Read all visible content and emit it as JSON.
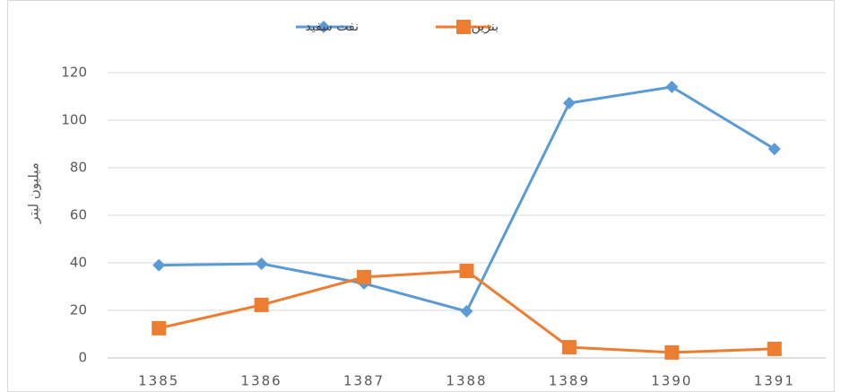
{
  "chart_data": {
    "type": "line",
    "y_label": "میلیون لیتر",
    "categories": [
      "1385",
      "1386",
      "1387",
      "1388",
      "1389",
      "1390",
      "1391"
    ],
    "series": [
      {
        "name": "نفت سفید",
        "color": "#5b9bd5",
        "marker": "diamond",
        "values": [
          39,
          39.6,
          31.3,
          19.6,
          107.2,
          114,
          87.9
        ]
      },
      {
        "name": "بنزین",
        "color": "#ed7d31",
        "marker": "square",
        "values": [
          12.5,
          22.3,
          34,
          36.6,
          4.5,
          2.3,
          3.8
        ]
      }
    ],
    "ylim": [
      0,
      120
    ],
    "yticks": [
      0,
      20,
      40,
      60,
      80,
      100,
      120
    ],
    "grid": true
  }
}
